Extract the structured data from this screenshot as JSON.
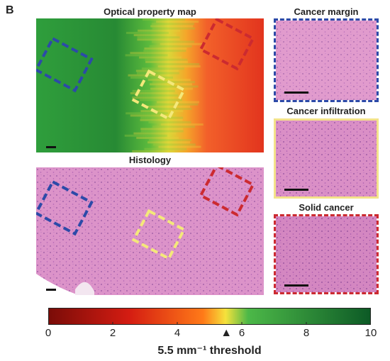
{
  "panel_label": "B",
  "map_title": "Optical property map",
  "histology_title": "Histology",
  "insets": [
    {
      "title": "Cancer margin",
      "border_color": "#2c4aa8"
    },
    {
      "title": "Cancer infiltration",
      "border_color": "#f3e28a"
    },
    {
      "title": "Solid cancer",
      "border_color": "#cc2a30"
    }
  ],
  "roi_colors": {
    "margin": "#2c4aa8",
    "infiltration": "#f4e87a",
    "solid": "#cc2a30"
  },
  "colorbar": {
    "ticks": [
      "0",
      "2",
      "4",
      "6",
      "8",
      "10"
    ],
    "range": [
      0,
      10
    ],
    "threshold_value": 5.5,
    "threshold_label": "5.5 mm⁻¹ threshold",
    "colors": [
      "#7a0c08",
      "#d41c12",
      "#ff7a18",
      "#f5e23c",
      "#4cb848",
      "#0d5a26"
    ]
  }
}
